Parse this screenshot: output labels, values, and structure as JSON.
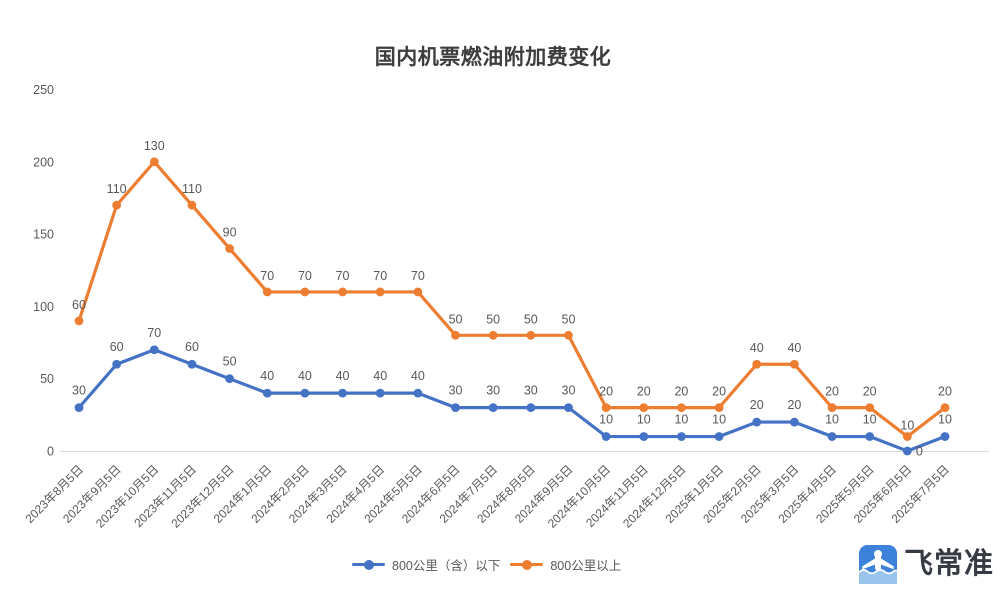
{
  "title": "国内机票燃油附加费变化",
  "chart_data": {
    "type": "line",
    "stacked": true,
    "title": "国内机票燃油附加费变化",
    "categories": [
      "2023年8月5日",
      "2023年9月5日",
      "2023年10月5日",
      "2023年11月5日",
      "2023年12月5日",
      "2024年1月5日",
      "2024年2月5日",
      "2024年3月5日",
      "2024年4月5日",
      "2024年5月5日",
      "2024年6月5日",
      "2024年7月5日",
      "2024年8月5日",
      "2024年9月5日",
      "2024年10月5日",
      "2024年11月5日",
      "2024年12月5日",
      "2025年1月5日",
      "2025年2月5日",
      "2025年3月5日",
      "2025年4月5日",
      "2025年5月5日",
      "2025年6月5日",
      "2025年7月5日"
    ],
    "series": [
      {
        "name": "800公里（含）以下",
        "color": "#4472C4",
        "values": [
          30,
          60,
          70,
          60,
          50,
          40,
          40,
          40,
          40,
          40,
          30,
          30,
          30,
          30,
          10,
          10,
          10,
          10,
          20,
          20,
          10,
          10,
          0,
          10
        ]
      },
      {
        "name": "800公里以上",
        "color": "#ED7D31",
        "values": [
          60,
          110,
          130,
          110,
          90,
          70,
          70,
          70,
          70,
          70,
          50,
          50,
          50,
          50,
          20,
          20,
          20,
          20,
          40,
          40,
          20,
          20,
          10,
          20
        ]
      }
    ],
    "ylim": [
      0,
      250
    ],
    "yticks": [
      0,
      50,
      100,
      150,
      200,
      250
    ],
    "grid": false,
    "legend_position": "bottom-center",
    "label_color": "#595959",
    "axis_line_color": "#D9D9D9",
    "axis_text_color": "#595959"
  },
  "legend": {
    "items": [
      {
        "label": "800公里（含）以下",
        "color": "#4472C4"
      },
      {
        "label": "800公里以上",
        "color": "#ED7D31"
      }
    ]
  },
  "branding": {
    "logo_text": "飞常准",
    "icon": "feichangzhun-app-icon",
    "icon_blue": "#3E81D8",
    "icon_light_blue": "#9AC4EC"
  }
}
